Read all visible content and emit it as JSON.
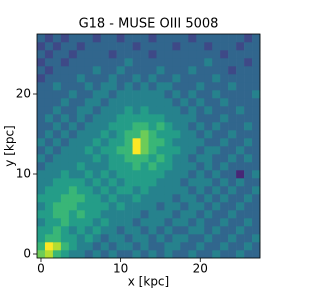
{
  "chart_data": {
    "type": "heatmap",
    "title": "G18 - MUSE OIII 5008",
    "x_label": "x [kpc]",
    "y_label": "y [kpc]",
    "xlim": [
      -0.5,
      27.5
    ],
    "ylim": [
      -0.5,
      27.5
    ],
    "xticks": [
      0,
      10,
      20
    ],
    "yticks": [
      0,
      10,
      20
    ],
    "colormap": "viridis",
    "zlim": [
      0,
      9
    ],
    "z": [
      [
        7,
        8,
        6,
        5,
        4,
        4,
        3,
        4,
        3,
        4,
        3,
        3,
        4,
        3,
        4,
        3,
        4,
        3,
        3,
        4,
        3,
        3,
        4,
        3,
        3,
        4,
        3,
        3
      ],
      [
        6,
        9,
        8,
        6,
        5,
        4,
        4,
        3,
        4,
        3,
        4,
        4,
        3,
        4,
        3,
        3,
        4,
        4,
        3,
        3,
        4,
        3,
        3,
        4,
        3,
        3,
        4,
        3
      ],
      [
        5,
        6,
        6,
        5,
        5,
        4,
        5,
        4,
        3,
        4,
        4,
        3,
        4,
        4,
        3,
        4,
        3,
        4,
        4,
        3,
        3,
        4,
        3,
        3,
        4,
        3,
        3,
        4
      ],
      [
        5,
        5,
        6,
        5,
        4,
        5,
        4,
        5,
        4,
        4,
        3,
        4,
        4,
        3,
        4,
        3,
        4,
        3,
        3,
        4,
        4,
        3,
        4,
        3,
        3,
        4,
        3,
        3
      ],
      [
        4,
        5,
        5,
        6,
        5,
        5,
        5,
        4,
        5,
        4,
        4,
        4,
        3,
        4,
        4,
        4,
        3,
        4,
        4,
        3,
        4,
        3,
        3,
        4,
        3,
        3,
        4,
        3
      ],
      [
        5,
        5,
        6,
        6,
        5,
        6,
        5,
        5,
        4,
        4,
        4,
        4,
        4,
        3,
        4,
        4,
        4,
        3,
        4,
        4,
        3,
        4,
        3,
        3,
        4,
        3,
        3,
        3
      ],
      [
        4,
        5,
        6,
        6,
        6,
        5,
        5,
        5,
        5,
        4,
        5,
        4,
        4,
        4,
        4,
        3,
        4,
        4,
        3,
        4,
        4,
        3,
        4,
        3,
        3,
        4,
        3,
        3
      ],
      [
        5,
        5,
        5,
        6,
        6,
        6,
        5,
        5,
        4,
        5,
        4,
        4,
        5,
        4,
        4,
        4,
        4,
        3,
        4,
        4,
        3,
        4,
        3,
        4,
        3,
        3,
        4,
        3
      ],
      [
        4,
        5,
        5,
        5,
        6,
        5,
        5,
        4,
        5,
        4,
        5,
        5,
        4,
        5,
        4,
        4,
        4,
        4,
        4,
        3,
        4,
        3,
        4,
        3,
        4,
        3,
        3,
        4
      ],
      [
        4,
        4,
        5,
        5,
        5,
        5,
        4,
        5,
        4,
        5,
        4,
        5,
        5,
        5,
        5,
        4,
        4,
        4,
        3,
        4,
        4,
        4,
        3,
        4,
        3,
        4,
        3,
        3
      ],
      [
        4,
        4,
        4,
        5,
        4,
        4,
        5,
        4,
        5,
        4,
        5,
        5,
        5,
        5,
        5,
        5,
        4,
        4,
        4,
        3,
        4,
        3,
        4,
        3,
        3,
        1,
        3,
        4
      ],
      [
        3,
        4,
        4,
        4,
        4,
        5,
        4,
        4,
        4,
        5,
        5,
        5,
        6,
        5,
        6,
        5,
        5,
        4,
        4,
        4,
        3,
        4,
        3,
        4,
        3,
        3,
        3,
        3
      ],
      [
        4,
        3,
        4,
        4,
        4,
        4,
        4,
        5,
        4,
        5,
        5,
        6,
        6,
        6,
        5,
        6,
        5,
        4,
        4,
        3,
        4,
        4,
        3,
        3,
        4,
        3,
        4,
        3
      ],
      [
        3,
        4,
        3,
        4,
        4,
        4,
        5,
        4,
        5,
        5,
        6,
        6,
        9,
        7,
        6,
        5,
        5,
        5,
        4,
        4,
        3,
        4,
        4,
        3,
        3,
        4,
        3,
        3
      ],
      [
        4,
        3,
        4,
        3,
        4,
        4,
        4,
        5,
        4,
        5,
        5,
        6,
        9,
        7,
        6,
        6,
        5,
        4,
        4,
        4,
        4,
        3,
        3,
        4,
        3,
        3,
        4,
        3
      ],
      [
        3,
        4,
        3,
        4,
        3,
        4,
        4,
        4,
        5,
        4,
        5,
        6,
        6,
        7,
        6,
        5,
        5,
        5,
        4,
        4,
        3,
        4,
        3,
        3,
        4,
        3,
        3,
        3
      ],
      [
        3,
        3,
        4,
        3,
        4,
        3,
        4,
        4,
        4,
        5,
        5,
        5,
        6,
        6,
        5,
        6,
        5,
        4,
        4,
        3,
        4,
        3,
        4,
        3,
        3,
        3,
        4,
        3
      ],
      [
        3,
        4,
        3,
        4,
        3,
        4,
        3,
        4,
        4,
        4,
        5,
        5,
        5,
        5,
        5,
        5,
        4,
        4,
        4,
        4,
        3,
        3,
        3,
        4,
        3,
        3,
        3,
        3
      ],
      [
        3,
        3,
        4,
        3,
        3,
        4,
        4,
        3,
        4,
        4,
        4,
        5,
        4,
        5,
        4,
        4,
        4,
        4,
        3,
        4,
        3,
        4,
        3,
        3,
        3,
        4,
        3,
        3
      ],
      [
        3,
        3,
        3,
        4,
        3,
        3,
        4,
        4,
        3,
        4,
        4,
        4,
        4,
        4,
        4,
        4,
        4,
        3,
        4,
        3,
        4,
        3,
        3,
        4,
        3,
        3,
        3,
        3
      ],
      [
        3,
        3,
        3,
        3,
        4,
        3,
        3,
        4,
        4,
        3,
        4,
        4,
        4,
        4,
        4,
        4,
        3,
        4,
        3,
        4,
        3,
        3,
        4,
        3,
        3,
        3,
        3,
        4
      ],
      [
        3,
        3,
        4,
        3,
        3,
        3,
        4,
        3,
        4,
        4,
        3,
        4,
        3,
        4,
        3,
        4,
        4,
        3,
        3,
        3,
        4,
        3,
        3,
        3,
        4,
        3,
        3,
        3
      ],
      [
        2,
        3,
        3,
        3,
        3,
        4,
        3,
        3,
        3,
        4,
        3,
        3,
        4,
        3,
        4,
        3,
        3,
        4,
        3,
        3,
        3,
        3,
        4,
        3,
        3,
        3,
        3,
        3
      ],
      [
        3,
        2,
        3,
        3,
        3,
        3,
        3,
        4,
        3,
        3,
        4,
        3,
        3,
        3,
        3,
        4,
        3,
        3,
        3,
        4,
        3,
        3,
        3,
        3,
        2,
        3,
        3,
        3
      ],
      [
        2,
        3,
        3,
        2,
        3,
        3,
        3,
        3,
        3,
        3,
        3,
        4,
        3,
        3,
        3,
        3,
        3,
        3,
        3,
        3,
        3,
        4,
        3,
        3,
        3,
        3,
        2,
        3
      ],
      [
        3,
        2,
        3,
        3,
        2,
        3,
        3,
        3,
        3,
        2,
        3,
        3,
        3,
        3,
        2,
        3,
        3,
        3,
        3,
        3,
        3,
        3,
        3,
        2,
        3,
        3,
        3,
        3
      ],
      [
        2,
        3,
        2,
        3,
        3,
        2,
        3,
        3,
        3,
        3,
        3,
        3,
        2,
        3,
        3,
        3,
        3,
        2,
        3,
        3,
        3,
        2,
        3,
        3,
        3,
        2,
        3,
        3
      ],
      [
        3,
        2,
        3,
        2,
        3,
        3,
        3,
        2,
        3,
        3,
        2,
        3,
        3,
        3,
        2,
        3,
        3,
        3,
        3,
        2,
        3,
        3,
        3,
        3,
        3,
        3,
        2,
        3
      ]
    ]
  }
}
